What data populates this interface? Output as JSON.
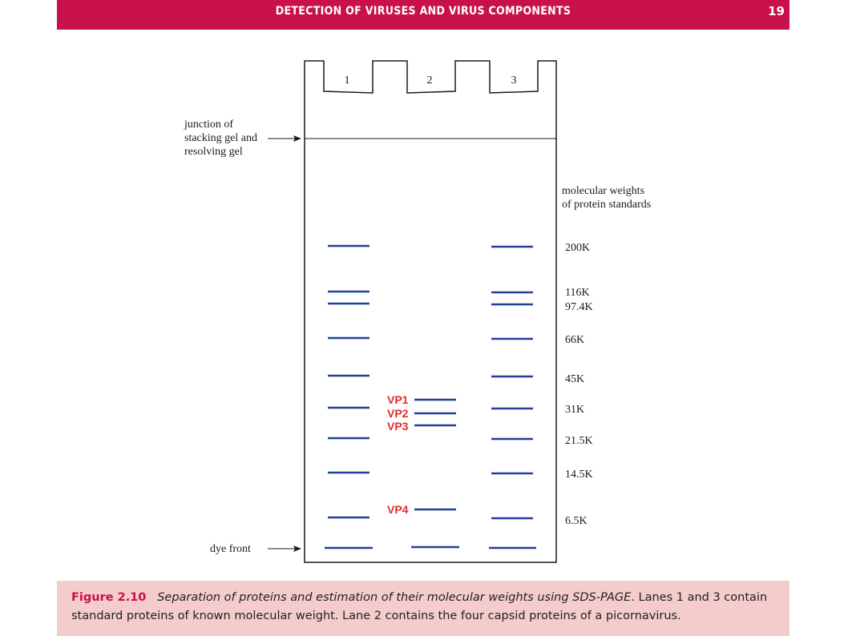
{
  "header": {
    "title": "DETECTION OF VIRUSES AND VIRUS COMPONENTS",
    "page_number": "19",
    "color": "#c8114a"
  },
  "gel": {
    "lanes": [
      "1",
      "2",
      "3"
    ],
    "junction_label": [
      "junction of",
      "stacking gel and",
      "resolving gel"
    ],
    "dye_front_label": "dye front",
    "standards_heading": [
      "molecular weights",
      "of protein standards"
    ],
    "standards": [
      "200K",
      "116K",
      "97.4K",
      "66K",
      "45K",
      "31K",
      "21.5K",
      "14.5K",
      "6.5K"
    ],
    "capsid_proteins": [
      "VP1",
      "VP2",
      "VP3",
      "VP4"
    ],
    "band_color": "#21409a",
    "vp_color": "#e32b2b"
  },
  "caption": {
    "label": "Figure 2.10",
    "title": "Separation of proteins and estimation of their molecular weights using SDS-PAGE",
    "line1_rest": ". Lanes 1 and 3 contain",
    "line2": "standard proteins of known molecular weight. Lane 2 contains the four capsid proteins of a picornavirus.",
    "background": "#f4cccc"
  }
}
